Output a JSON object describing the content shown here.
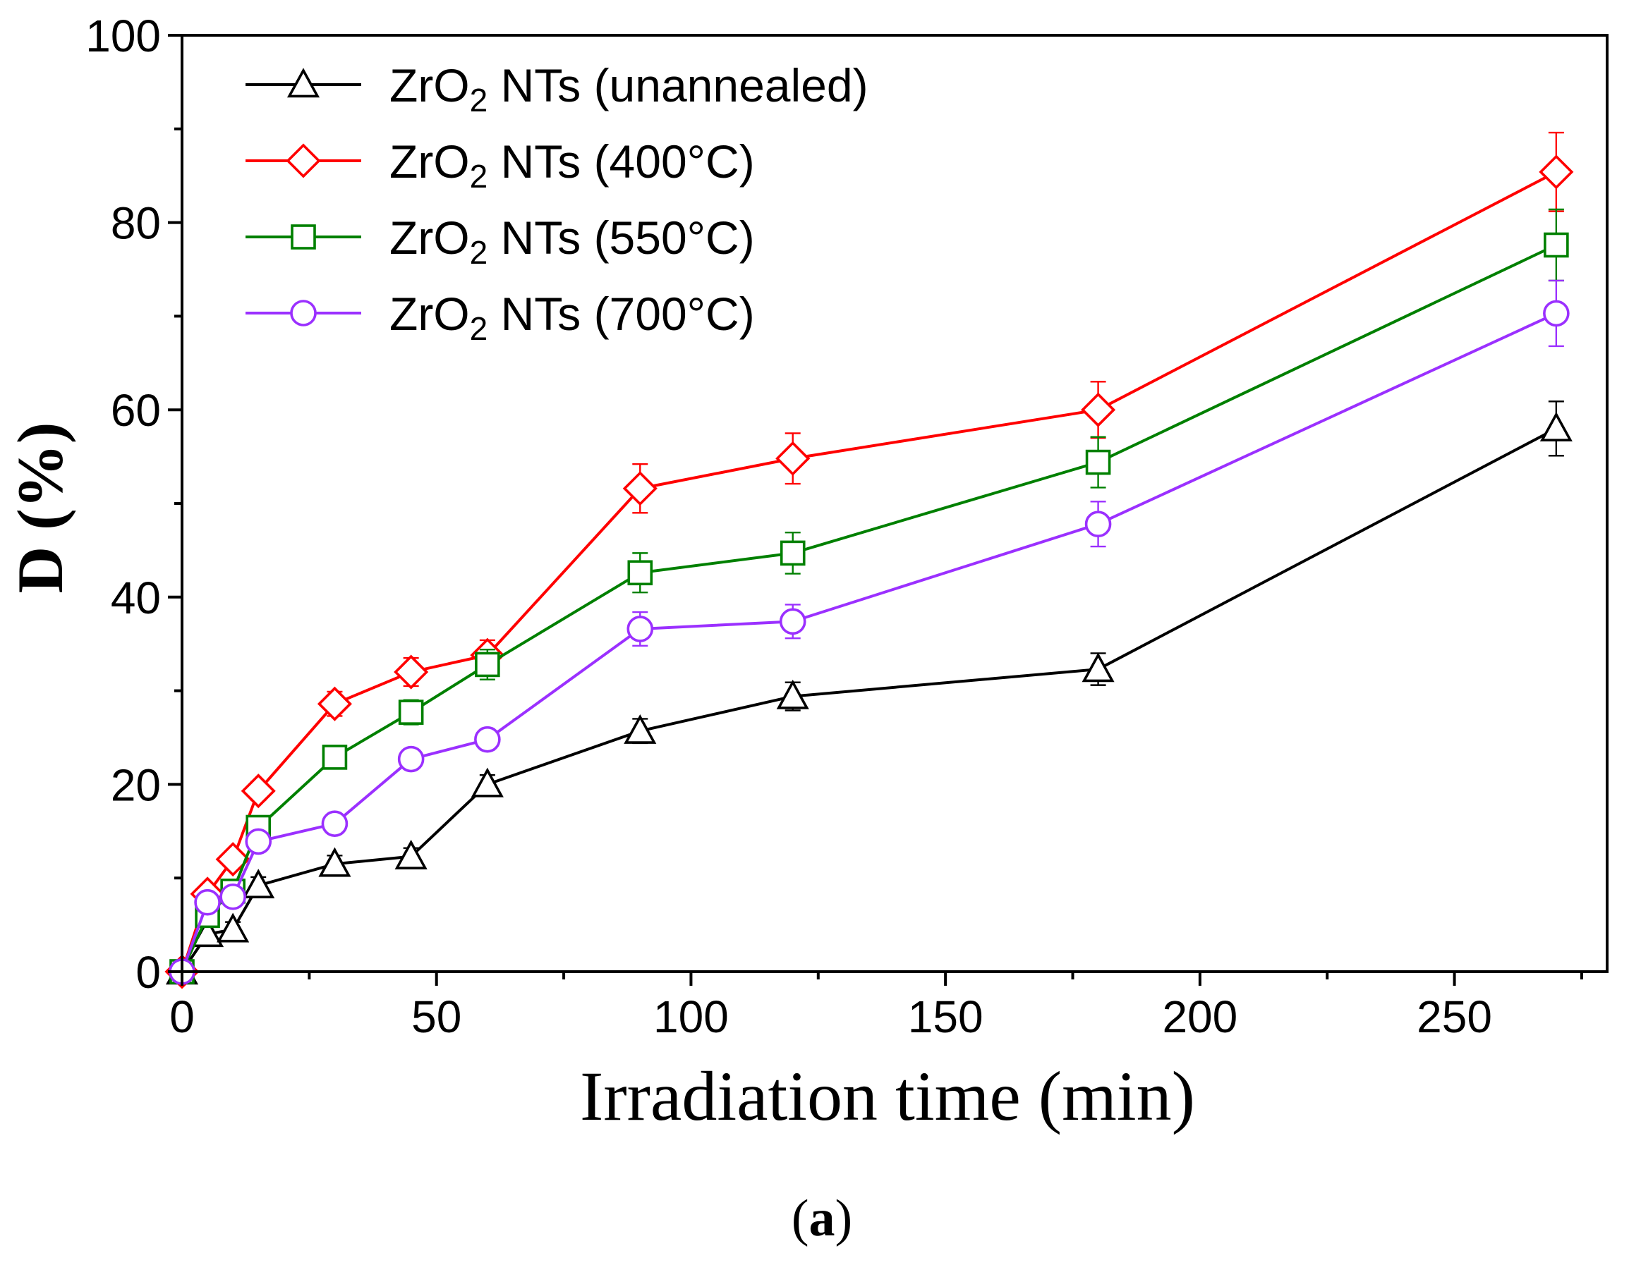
{
  "chart_data": {
    "type": "line",
    "title": "",
    "xlabel": "Irradiation time (min)",
    "ylabel": "D (%)",
    "caption": {
      "open": "(",
      "letter": "a",
      "close": ")"
    },
    "xlim": [
      0,
      280
    ],
    "ylim": [
      0,
      100
    ],
    "xticks": [
      0,
      50,
      100,
      150,
      200,
      250
    ],
    "yticks": [
      0,
      20,
      40,
      60,
      80,
      100
    ],
    "x_minor_step": 25,
    "y_minor_step": 10,
    "grid": false,
    "legend_position": "top-left",
    "x": [
      0,
      5,
      10,
      15,
      30,
      45,
      60,
      90,
      120,
      180,
      270
    ],
    "series": [
      {
        "name": "ZrO2 NTs (unannealed)",
        "legend": {
          "pre": "ZrO",
          "sub": "2",
          "post": " NTs (unannealed)"
        },
        "color": "#000000",
        "marker": "triangle",
        "values": [
          0,
          4.0,
          4.5,
          9.2,
          11.5,
          12.3,
          20.0,
          25.7,
          29.4,
          32.3,
          58.0
        ],
        "errors": [
          0,
          0.8,
          0.8,
          0.9,
          0.9,
          0.9,
          1.0,
          1.3,
          1.5,
          1.7,
          2.9
        ]
      },
      {
        "name": "ZrO2 NTs (400°C)",
        "legend": {
          "pre": "ZrO",
          "sub": "2",
          "post": " NTs (400°C)"
        },
        "color": "#ff0000",
        "marker": "diamond",
        "values": [
          0,
          8.3,
          12.0,
          19.3,
          28.6,
          32.0,
          33.8,
          51.6,
          54.8,
          60.0,
          85.4
        ],
        "errors": [
          0,
          0.8,
          0.9,
          1.0,
          1.3,
          1.5,
          1.6,
          2.6,
          2.7,
          3.0,
          4.2
        ]
      },
      {
        "name": "ZrO2 NTs (550°C)",
        "legend": {
          "pre": "ZrO",
          "sub": "2",
          "post": " NTs (550°C)"
        },
        "color": "#008000",
        "marker": "square",
        "values": [
          0,
          6.0,
          8.6,
          15.4,
          22.9,
          27.7,
          32.8,
          42.6,
          44.7,
          54.4,
          77.6
        ],
        "errors": [
          0,
          0.8,
          0.8,
          1.0,
          1.1,
          1.3,
          1.6,
          2.1,
          2.2,
          2.7,
          3.8
        ]
      },
      {
        "name": "ZrO2 NTs (700°C)",
        "legend": {
          "pre": "ZrO",
          "sub": "2",
          "post": " NTs (700°C)"
        },
        "color": "#9b30ff",
        "marker": "circle",
        "values": [
          0,
          7.4,
          8.0,
          13.9,
          15.8,
          22.7,
          24.8,
          36.6,
          37.4,
          47.8,
          70.3
        ],
        "errors": [
          0,
          0.7,
          0.7,
          0.8,
          0.8,
          1.0,
          1.1,
          1.8,
          1.8,
          2.4,
          3.5
        ]
      }
    ]
  }
}
